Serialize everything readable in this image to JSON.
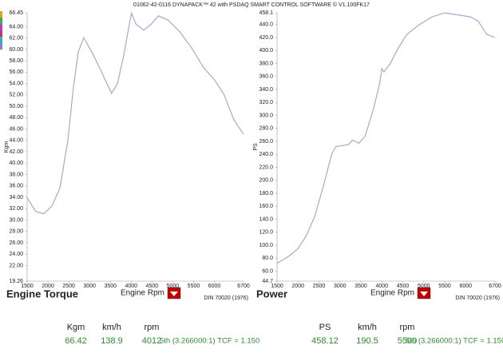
{
  "header": {
    "title": "01062-42-0116 DYNAPACK™ 42 with PSDAQ SMART CONTROL SOFTWARE © V1.100FK17"
  },
  "chart_data": [
    {
      "type": "line",
      "title": "Engine Torque",
      "x_label": "Engine Rpm",
      "y_label": "Kgm",
      "note": "DIN 70020 (1976)",
      "x": [
        1500,
        1710,
        1900,
        2100,
        2290,
        2480,
        2610,
        2730,
        2860,
        3050,
        3240,
        3380,
        3530,
        3670,
        3820,
        3975,
        4010,
        4110,
        4300,
        4490,
        4650,
        4880,
        5170,
        5450,
        5740,
        6000,
        6230,
        6470,
        6700
      ],
      "series": [
        {
          "color": "#a8a8cc",
          "values": [
            33.9,
            31.5,
            31.1,
            32.5,
            35.7,
            44.1,
            53.2,
            59.6,
            62.1,
            59.6,
            56.8,
            54.6,
            52.3,
            54.0,
            58.9,
            65.2,
            66.4,
            64.5,
            63.4,
            64.5,
            65.9,
            65.2,
            63.1,
            60.3,
            56.8,
            54.7,
            52.1,
            47.6,
            45.1
          ]
        }
      ],
      "xlim": [
        1500,
        6700
      ],
      "ylim": [
        19.26,
        66.45
      ],
      "xticks": [
        1500,
        2000,
        2500,
        3000,
        3500,
        4000,
        4500,
        5000,
        5500,
        6000,
        6700
      ],
      "yticks": [
        19.26,
        {
          "value": 22,
          "label": "22.00"
        },
        {
          "value": 24,
          "label": "24.00"
        },
        {
          "value": 26,
          "label": "26.00"
        },
        {
          "value": 28,
          "label": "28.00"
        },
        {
          "value": 30,
          "label": "30.00"
        },
        {
          "value": 32,
          "label": "32.00"
        },
        {
          "value": 34,
          "label": "34.00"
        },
        {
          "value": 36,
          "label": "36.00"
        },
        {
          "value": 38,
          "label": "38.00"
        },
        {
          "value": 40,
          "label": "40.00"
        },
        {
          "value": 42,
          "label": "42.00"
        },
        {
          "value": 44,
          "label": "44.00"
        },
        {
          "value": 46,
          "label": "46.00"
        },
        {
          "value": 48,
          "label": "48.00"
        },
        {
          "value": 50,
          "label": "50.00"
        },
        {
          "value": 52,
          "label": "52.00"
        },
        {
          "value": 54,
          "label": "54.00"
        },
        {
          "value": 56,
          "label": "56.00"
        },
        {
          "value": 58,
          "label": "58.00"
        },
        {
          "value": 60,
          "label": "60.00"
        },
        {
          "value": 62,
          "label": "62.00"
        },
        {
          "value": 64,
          "label": "64.00"
        },
        66.45
      ]
    },
    {
      "type": "line",
      "title": "Power",
      "x_label": "Engine Rpm",
      "y_label": "PS",
      "note": "DIN 70020 (1976)",
      "x": [
        1500,
        1800,
        2000,
        2200,
        2400,
        2600,
        2800,
        2900,
        3200,
        3300,
        3450,
        3600,
        3800,
        3950,
        4000,
        4050,
        4200,
        4400,
        4600,
        4900,
        5200,
        5500,
        5800,
        6100,
        6300,
        6500,
        6700
      ],
      "series": [
        {
          "color": "#a8a8cc",
          "values": [
            72,
            84,
            95,
            115,
            145,
            190,
            240,
            252,
            255,
            262,
            257,
            268,
            310,
            350,
            372,
            367,
            380,
            405,
            425,
            440,
            452,
            458,
            455,
            452,
            445,
            425,
            420
          ]
        }
      ],
      "xlim": [
        1500,
        6700
      ],
      "ylim": [
        44.7,
        458.1
      ],
      "xticks": [
        1500,
        2000,
        2500,
        3000,
        3500,
        4000,
        4500,
        5000,
        5500,
        6000,
        6700
      ],
      "yticks": [
        44.7,
        {
          "value": 60,
          "label": "60.0"
        },
        {
          "value": 80,
          "label": "80.0"
        },
        {
          "value": 100,
          "label": "100.0"
        },
        {
          "value": 120,
          "label": "120.0"
        },
        {
          "value": 140,
          "label": "140.0"
        },
        {
          "value": 160,
          "label": "160.0"
        },
        {
          "value": 180,
          "label": "180.0"
        },
        {
          "value": 200,
          "label": "200.0"
        },
        {
          "value": 220,
          "label": "220.0"
        },
        {
          "value": 240,
          "label": "240.0"
        },
        {
          "value": 260,
          "label": "260.0"
        },
        {
          "value": 280,
          "label": "280.0"
        },
        {
          "value": 300,
          "label": "300.0"
        },
        {
          "value": 320,
          "label": "320.0"
        },
        {
          "value": 340,
          "label": "340.0"
        },
        {
          "value": 360,
          "label": "360.0"
        },
        {
          "value": 380,
          "label": "380.0"
        },
        {
          "value": 400,
          "label": "400.0"
        },
        {
          "value": 420,
          "label": "420.0"
        },
        {
          "value": 440,
          "label": "440.0"
        },
        458.1
      ]
    }
  ],
  "readouts": [
    {
      "headers": [
        "Kgm",
        "km/h",
        "rpm"
      ],
      "values": [
        "66.42",
        "138.9",
        "4012"
      ],
      "gear": "5th (3.266000:1) TCF = 1.150"
    },
    {
      "headers": [
        "PS",
        "km/h",
        "rpm"
      ],
      "values": [
        "458.12",
        "190.5",
        "5500"
      ],
      "gear": "5th (3.266000:1) TCF = 1.150"
    }
  ]
}
